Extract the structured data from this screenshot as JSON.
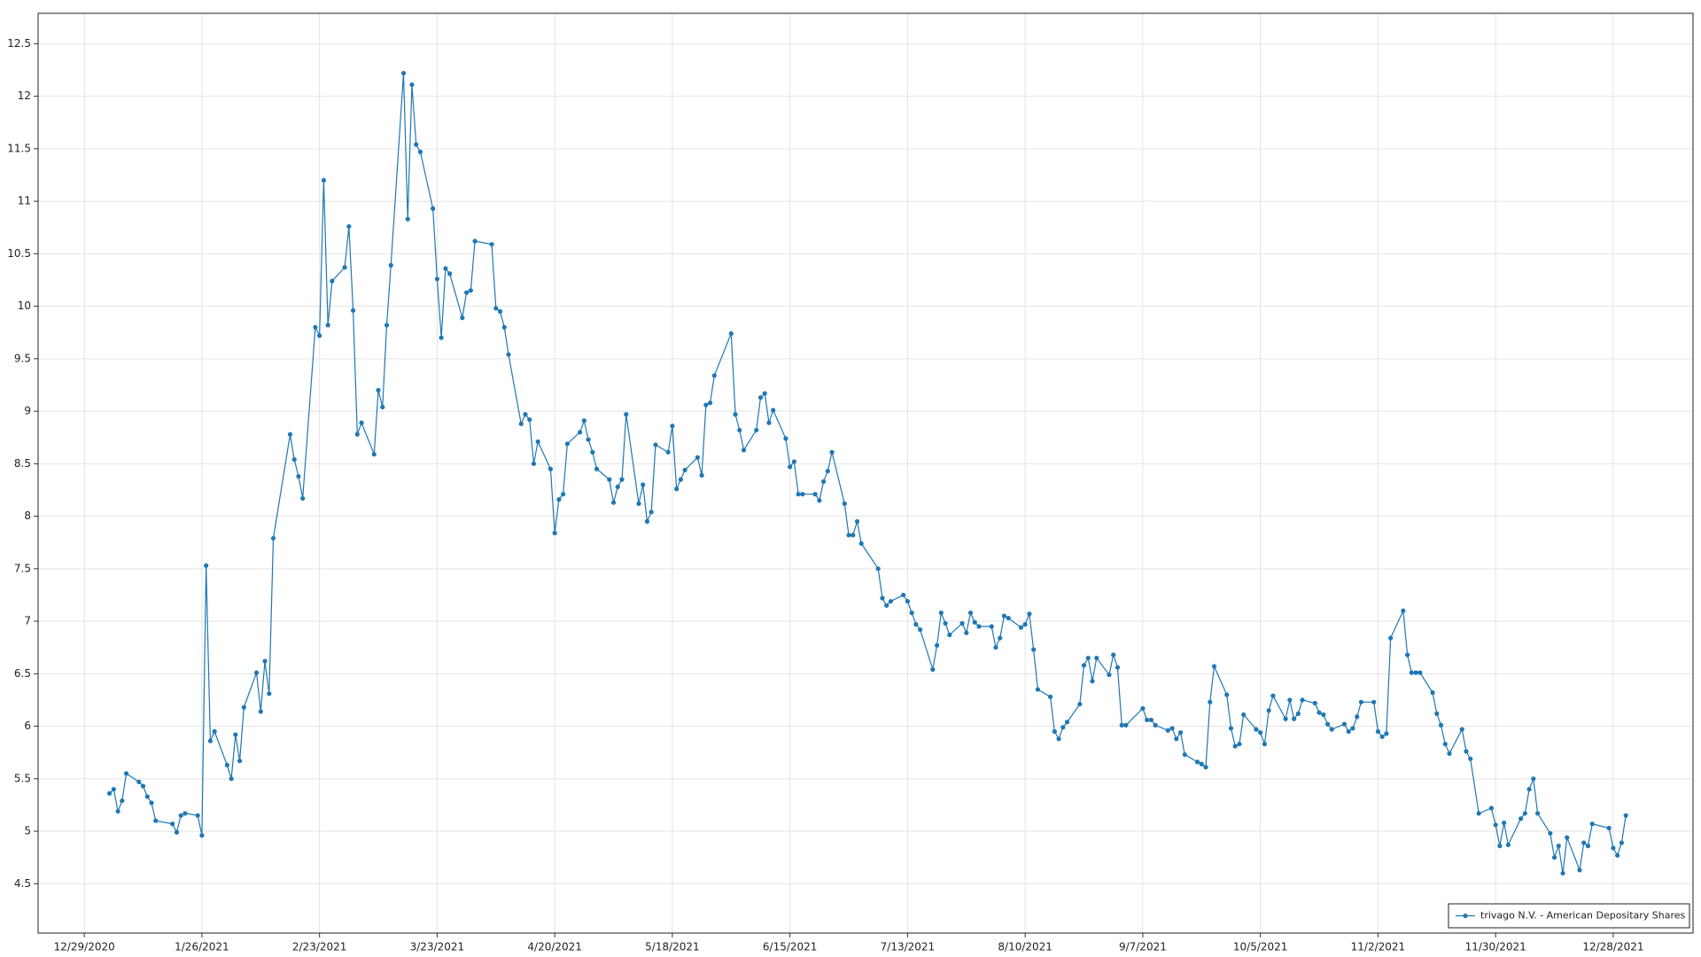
{
  "chart_data": {
    "type": "line",
    "x": [
      "1/4/2021",
      "1/5/2021",
      "1/6/2021",
      "1/7/2021",
      "1/8/2021",
      "1/11/2021",
      "1/12/2021",
      "1/13/2021",
      "1/14/2021",
      "1/15/2021",
      "1/19/2021",
      "1/20/2021",
      "1/21/2021",
      "1/22/2021",
      "1/25/2021",
      "1/26/2021",
      "1/27/2021",
      "1/28/2021",
      "1/29/2021",
      "2/1/2021",
      "2/2/2021",
      "2/3/2021",
      "2/4/2021",
      "2/5/2021",
      "2/8/2021",
      "2/9/2021",
      "2/10/2021",
      "2/11/2021",
      "2/12/2021",
      "2/16/2021",
      "2/17/2021",
      "2/18/2021",
      "2/19/2021",
      "2/22/2021",
      "2/23/2021",
      "2/24/2021",
      "2/25/2021",
      "2/26/2021",
      "3/1/2021",
      "3/2/2021",
      "3/3/2021",
      "3/4/2021",
      "3/5/2021",
      "3/8/2021",
      "3/9/2021",
      "3/10/2021",
      "3/11/2021",
      "3/12/2021",
      "3/15/2021",
      "3/16/2021",
      "3/17/2021",
      "3/18/2021",
      "3/19/2021",
      "3/22/2021",
      "3/23/2021",
      "3/24/2021",
      "3/25/2021",
      "3/26/2021",
      "3/29/2021",
      "3/30/2021",
      "3/31/2021",
      "4/1/2021",
      "4/5/2021",
      "4/6/2021",
      "4/7/2021",
      "4/8/2021",
      "4/9/2021",
      "4/12/2021",
      "4/13/2021",
      "4/14/2021",
      "4/15/2021",
      "4/16/2021",
      "4/19/2021",
      "4/20/2021",
      "4/21/2021",
      "4/22/2021",
      "4/23/2021",
      "4/26/2021",
      "4/27/2021",
      "4/28/2021",
      "4/29/2021",
      "4/30/2021",
      "5/3/2021",
      "5/4/2021",
      "5/5/2021",
      "5/6/2021",
      "5/7/2021",
      "5/10/2021",
      "5/11/2021",
      "5/12/2021",
      "5/13/2021",
      "5/14/2021",
      "5/17/2021",
      "5/18/2021",
      "5/19/2021",
      "5/20/2021",
      "5/21/2021",
      "5/24/2021",
      "5/25/2021",
      "5/26/2021",
      "5/27/2021",
      "5/28/2021",
      "6/1/2021",
      "6/2/2021",
      "6/3/2021",
      "6/4/2021",
      "6/7/2021",
      "6/8/2021",
      "6/9/2021",
      "6/10/2021",
      "6/11/2021",
      "6/14/2021",
      "6/15/2021",
      "6/16/2021",
      "6/17/2021",
      "6/18/2021",
      "6/21/2021",
      "6/22/2021",
      "6/23/2021",
      "6/24/2021",
      "6/25/2021",
      "6/28/2021",
      "6/29/2021",
      "6/30/2021",
      "7/1/2021",
      "7/2/2021",
      "7/6/2021",
      "7/7/2021",
      "7/8/2021",
      "7/9/2021",
      "7/12/2021",
      "7/13/2021",
      "7/14/2021",
      "7/15/2021",
      "7/16/2021",
      "7/19/2021",
      "7/20/2021",
      "7/21/2021",
      "7/22/2021",
      "7/23/2021",
      "7/26/2021",
      "7/27/2021",
      "7/28/2021",
      "7/29/2021",
      "7/30/2021",
      "8/2/2021",
      "8/3/2021",
      "8/4/2021",
      "8/5/2021",
      "8/6/2021",
      "8/9/2021",
      "8/10/2021",
      "8/11/2021",
      "8/12/2021",
      "8/13/2021",
      "8/16/2021",
      "8/17/2021",
      "8/18/2021",
      "8/19/2021",
      "8/20/2021",
      "8/23/2021",
      "8/24/2021",
      "8/25/2021",
      "8/26/2021",
      "8/27/2021",
      "8/30/2021",
      "8/31/2021",
      "9/1/2021",
      "9/2/2021",
      "9/3/2021",
      "9/7/2021",
      "9/8/2021",
      "9/9/2021",
      "9/10/2021",
      "9/13/2021",
      "9/14/2021",
      "9/15/2021",
      "9/16/2021",
      "9/17/2021",
      "9/20/2021",
      "9/21/2021",
      "9/22/2021",
      "9/23/2021",
      "9/24/2021",
      "9/27/2021",
      "9/28/2021",
      "9/29/2021",
      "9/30/2021",
      "10/1/2021",
      "10/4/2021",
      "10/5/2021",
      "10/6/2021",
      "10/7/2021",
      "10/8/2021",
      "10/11/2021",
      "10/12/2021",
      "10/13/2021",
      "10/14/2021",
      "10/15/2021",
      "10/18/2021",
      "10/19/2021",
      "10/20/2021",
      "10/21/2021",
      "10/22/2021",
      "10/25/2021",
      "10/26/2021",
      "10/27/2021",
      "10/28/2021",
      "10/29/2021",
      "11/1/2021",
      "11/2/2021",
      "11/3/2021",
      "11/4/2021",
      "11/5/2021",
      "11/8/2021",
      "11/9/2021",
      "11/10/2021",
      "11/11/2021",
      "11/12/2021",
      "11/15/2021",
      "11/16/2021",
      "11/17/2021",
      "11/18/2021",
      "11/19/2021",
      "11/22/2021",
      "11/23/2021",
      "11/24/2021",
      "11/26/2021",
      "11/29/2021",
      "11/30/2021",
      "12/1/2021",
      "12/2/2021",
      "12/3/2021",
      "12/6/2021",
      "12/7/2021",
      "12/8/2021",
      "12/9/2021",
      "12/10/2021",
      "12/13/2021",
      "12/14/2021",
      "12/15/2021",
      "12/16/2021",
      "12/17/2021",
      "12/20/2021",
      "12/21/2021",
      "12/22/2021",
      "12/23/2021",
      "12/27/2021",
      "12/28/2021",
      "12/29/2021",
      "12/30/2021",
      "12/31/2021"
    ],
    "series": [
      {
        "name": "trivago N.V. - American Depositary Shares",
        "color": "#1f77b4",
        "values": [
          5.36,
          5.4,
          5.19,
          5.29,
          5.55,
          5.47,
          5.43,
          5.33,
          5.27,
          5.1,
          5.07,
          4.99,
          5.15,
          5.17,
          5.15,
          4.96,
          7.53,
          5.86,
          5.95,
          5.63,
          5.5,
          5.92,
          5.67,
          6.18,
          6.51,
          6.14,
          6.62,
          6.31,
          7.79,
          8.78,
          8.54,
          8.38,
          8.17,
          9.8,
          9.72,
          11.2,
          9.82,
          10.24,
          10.37,
          10.76,
          9.96,
          8.78,
          8.89,
          8.59,
          9.2,
          9.04,
          9.82,
          10.39,
          12.22,
          10.83,
          12.11,
          11.54,
          11.47,
          10.93,
          10.26,
          9.7,
          10.36,
          10.31,
          9.89,
          10.13,
          10.15,
          10.62,
          10.59,
          9.98,
          9.95,
          9.8,
          9.54,
          8.88,
          8.97,
          8.92,
          8.5,
          8.71,
          8.45,
          7.84,
          8.16,
          8.21,
          8.69,
          8.8,
          8.91,
          8.73,
          8.61,
          8.45,
          8.35,
          8.13,
          8.28,
          8.35,
          8.97,
          8.12,
          8.3,
          7.95,
          8.04,
          8.68,
          8.61,
          8.86,
          8.26,
          8.35,
          8.44,
          8.56,
          8.39,
          9.06,
          9.08,
          9.34,
          9.74,
          8.97,
          8.82,
          8.63,
          8.82,
          9.13,
          9.17,
          8.89,
          9.01,
          8.74,
          8.47,
          8.52,
          8.21,
          8.21,
          8.21,
          8.15,
          8.33,
          8.43,
          8.61,
          8.12,
          7.82,
          7.82,
          7.95,
          7.74,
          7.5,
          7.22,
          7.15,
          7.19,
          7.25,
          7.19,
          7.08,
          6.97,
          6.92,
          6.54,
          6.77,
          7.08,
          6.98,
          6.87,
          6.98,
          6.89,
          7.08,
          6.99,
          6.95,
          6.95,
          6.75,
          6.84,
          7.05,
          7.03,
          6.94,
          6.97,
          7.07,
          6.73,
          6.35,
          6.28,
          5.95,
          5.88,
          5.99,
          6.04,
          6.21,
          6.58,
          6.65,
          6.43,
          6.65,
          6.49,
          6.68,
          6.56,
          6.01,
          6.01,
          6.17,
          6.06,
          6.06,
          6.01,
          5.96,
          5.98,
          5.88,
          5.94,
          5.73,
          5.66,
          5.64,
          5.61,
          6.23,
          6.57,
          6.3,
          5.98,
          5.81,
          5.83,
          6.11,
          5.97,
          5.94,
          5.83,
          6.15,
          6.29,
          6.07,
          6.25,
          6.07,
          6.12,
          6.25,
          6.22,
          6.13,
          6.11,
          6.02,
          5.97,
          6.02,
          5.95,
          5.98,
          6.09,
          6.23,
          6.23,
          5.95,
          5.9,
          5.93,
          6.84,
          7.1,
          6.68,
          6.51,
          6.51,
          6.51,
          6.32,
          6.12,
          6.01,
          5.83,
          5.74,
          5.97,
          5.76,
          5.69,
          5.17,
          5.22,
          5.06,
          4.86,
          5.08,
          4.87,
          5.12,
          5.17,
          5.4,
          5.5,
          5.17,
          4.98,
          4.75,
          4.86,
          4.6,
          4.94,
          4.63,
          4.89,
          4.86,
          5.07,
          5.03,
          4.84,
          4.77,
          4.89,
          5.15
        ]
      }
    ],
    "xlim": [
      "12/18/2020",
      "1/16/2022"
    ],
    "xticks": [
      "12/29/2020",
      "1/26/2021",
      "2/23/2021",
      "3/23/2021",
      "4/20/2021",
      "5/18/2021",
      "6/15/2021",
      "7/13/2021",
      "8/10/2021",
      "9/7/2021",
      "10/5/2021",
      "11/2/2021",
      "11/30/2021",
      "12/28/2021"
    ],
    "ylim": [
      4.03,
      12.79
    ],
    "yticks": [
      4.5,
      5,
      5.5,
      6,
      6.5,
      7,
      7.5,
      8,
      8.5,
      9,
      9.5,
      10,
      10.5,
      11,
      11.5,
      12,
      12.5
    ],
    "grid": true,
    "legend": "lower right"
  }
}
